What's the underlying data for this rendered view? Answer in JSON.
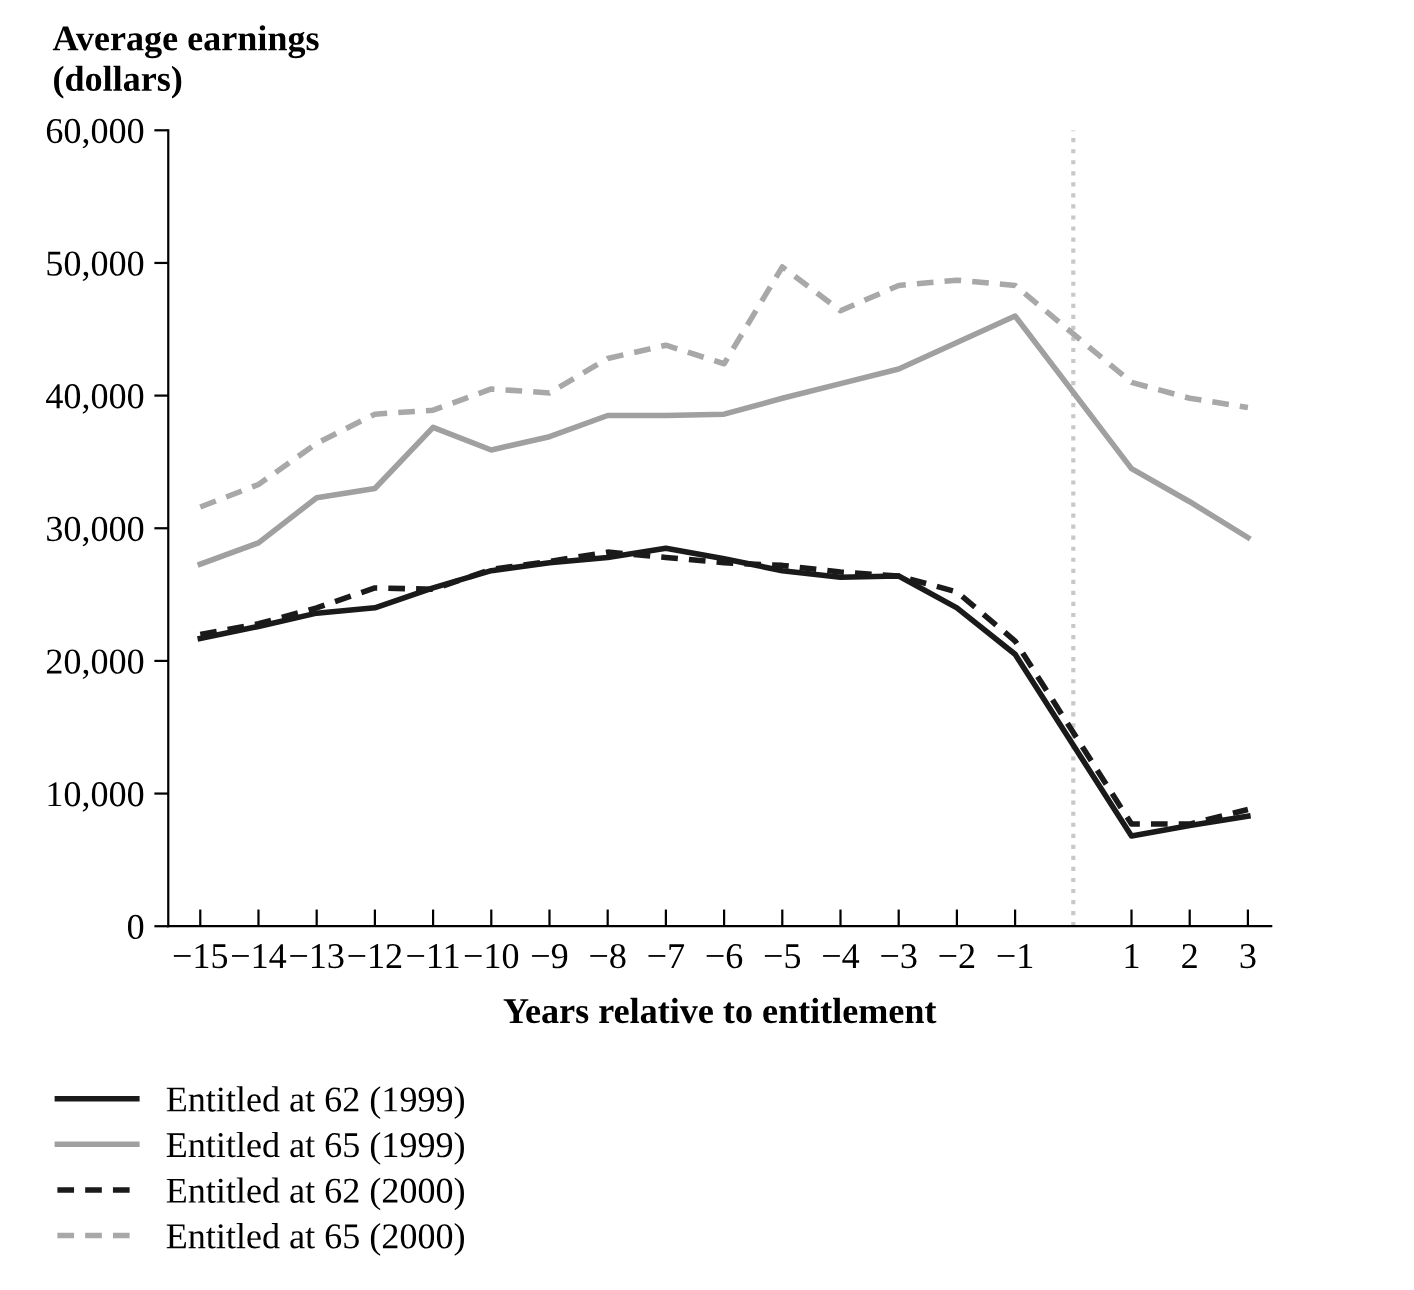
{
  "chart_data": {
    "type": "line",
    "ylabel": "Average earnings\n(dollars)",
    "xlabel": "Years relative to entitlement",
    "x": [
      -15,
      -14,
      -13,
      -12,
      -11,
      -10,
      -9,
      -8,
      -7,
      -6,
      -5,
      -4,
      -3,
      -2,
      -1,
      1,
      2,
      3
    ],
    "xlim": [
      -15.55,
      3.4
    ],
    "xticks": [
      {
        "value": -15,
        "label": "−15"
      },
      {
        "value": -14,
        "label": "−14"
      },
      {
        "value": -13,
        "label": "−13"
      },
      {
        "value": -12,
        "label": "−12"
      },
      {
        "value": -11,
        "label": "−11"
      },
      {
        "value": -10,
        "label": "−10"
      },
      {
        "value": -9,
        "label": "−9"
      },
      {
        "value": -8,
        "label": "−8"
      },
      {
        "value": -7,
        "label": "−7"
      },
      {
        "value": -6,
        "label": "−6"
      },
      {
        "value": -5,
        "label": "−5"
      },
      {
        "value": -4,
        "label": "−4"
      },
      {
        "value": -3,
        "label": "−3"
      },
      {
        "value": -2,
        "label": "−2"
      },
      {
        "value": -1,
        "label": "−1"
      },
      1,
      2,
      3
    ],
    "ylim": [
      0,
      60000
    ],
    "yticks": [
      0,
      {
        "value": 10000,
        "label": "10,000"
      },
      {
        "value": 20000,
        "label": "20,000"
      },
      {
        "value": 30000,
        "label": "30,000"
      },
      {
        "value": 40000,
        "label": "40,000"
      },
      {
        "value": 50000,
        "label": "50,000"
      },
      {
        "value": 60000,
        "label": "60,000"
      }
    ],
    "series": [
      {
        "name": "Entitled at 62 (1999)",
        "color": "#1a1a1a",
        "line_style": "solid",
        "values": [
          21700,
          22600,
          23600,
          24000,
          25500,
          26800,
          27400,
          27800,
          28500,
          27700,
          26800,
          26300,
          26400,
          24000,
          20500,
          6800,
          7600,
          8300
        ]
      },
      {
        "name": "Entitled at 65 (1999)",
        "color": "#a0a0a0",
        "line_style": "solid",
        "values": [
          27300,
          28900,
          32300,
          33000,
          37600,
          35900,
          36900,
          38500,
          38500,
          38600,
          39800,
          40900,
          42000,
          44000,
          46000,
          34500,
          32000,
          29300
        ]
      },
      {
        "name": "Entitled at 62 (2000)",
        "color": "#1a1a1a",
        "line_style": "dashed",
        "values": [
          22000,
          22800,
          24000,
          25500,
          25400,
          26900,
          27500,
          28200,
          27800,
          27400,
          27200,
          26700,
          26400,
          25200,
          21500,
          7700,
          7700,
          8800
        ]
      },
      {
        "name": "Entitled at 65 (2000)",
        "color": "#a8a8a8",
        "line_style": "dashed",
        "values": [
          31600,
          33300,
          36400,
          38600,
          38900,
          40500,
          40200,
          42800,
          43800,
          42400,
          49700,
          46400,
          48300,
          48700,
          48300,
          41000,
          39800,
          39100
        ]
      }
    ],
    "ref_lines": [
      {
        "axis": "x",
        "value": 0,
        "color": "#c8c8c8",
        "line_style": "dotted"
      }
    ],
    "grid": false,
    "legend": "bottom"
  }
}
